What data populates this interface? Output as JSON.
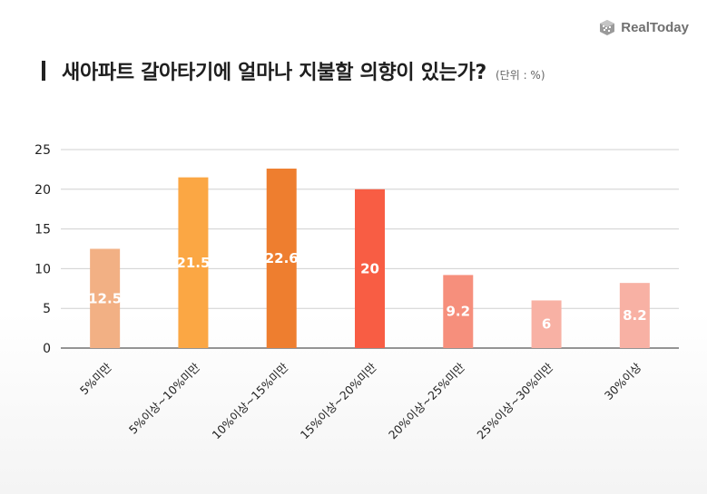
{
  "brand": {
    "name": "RealToday"
  },
  "title": "새아파트 갈아타기에 얼마나 지불할 의향이 있는가?",
  "unit_note": "(단위 : %)",
  "chart_data": {
    "type": "bar",
    "title": "새아파트 갈아타기에 얼마나 지불할 의향이 있는가?",
    "categories": [
      "5%미만",
      "5%이상~10%미만",
      "10%이상~15%미만",
      "15%이상~20%미만",
      "20%이상~25%미만",
      "25%이상~30%미만",
      "30%이상"
    ],
    "values": [
      12.5,
      21.5,
      22.6,
      20,
      9.2,
      6,
      8.2
    ],
    "value_labels": [
      "12.5",
      "21.5",
      "22.6",
      "20",
      "9.2",
      "6",
      "8.2"
    ],
    "colors": [
      "#F2B084",
      "#FBA744",
      "#EE7E2F",
      "#F85D44",
      "#F68F7C",
      "#F8B1A4",
      "#F8B1A4"
    ],
    "ylim": [
      0,
      25
    ],
    "yticks": [
      0,
      5,
      10,
      15,
      20,
      25
    ],
    "grid": true,
    "xlabel": "",
    "ylabel": ""
  }
}
